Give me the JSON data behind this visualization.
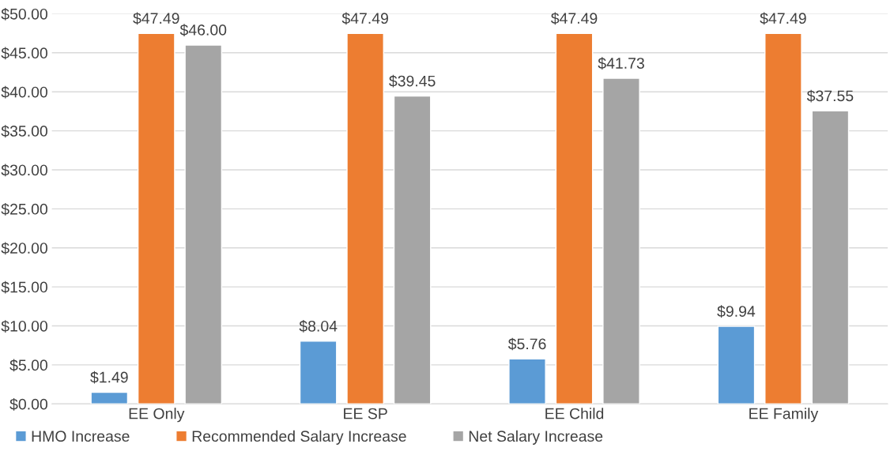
{
  "chart_data": {
    "type": "bar",
    "categories": [
      "EE Only",
      "EE SP",
      "EE Child",
      "EE Family"
    ],
    "series": [
      {
        "name": "HMO Increase",
        "color": "#5b9bd5",
        "values": [
          1.49,
          8.04,
          5.76,
          9.94
        ],
        "value_labels": [
          "$1.49",
          "$8.04",
          "$5.76",
          "$9.94"
        ]
      },
      {
        "name": "Recommended Salary Increase",
        "color": "#ed7d31",
        "values": [
          47.49,
          47.49,
          47.49,
          47.49
        ],
        "value_labels": [
          "$47.49",
          "$47.49",
          "$47.49",
          "$47.49"
        ]
      },
      {
        "name": "Net Salary Increase",
        "color": "#a5a5a5",
        "values": [
          46.0,
          39.45,
          41.73,
          37.55
        ],
        "value_labels": [
          "$46.00",
          "$39.45",
          "$41.73",
          "$37.55"
        ]
      }
    ],
    "ylim": [
      0,
      50
    ],
    "yticks": [
      {
        "value": 0,
        "label": "$0.00"
      },
      {
        "value": 5,
        "label": "$5.00"
      },
      {
        "value": 10,
        "label": "$10.00"
      },
      {
        "value": 15,
        "label": "$15.00"
      },
      {
        "value": 20,
        "label": "$20.00"
      },
      {
        "value": 25,
        "label": "$25.00"
      },
      {
        "value": 30,
        "label": "$30.00"
      },
      {
        "value": 35,
        "label": "$35.00"
      },
      {
        "value": 40,
        "label": "$40.00"
      },
      {
        "value": 45,
        "label": "$45.00"
      },
      {
        "value": 50,
        "label": "$50.00"
      }
    ],
    "grid": "y",
    "legend": "bottom left"
  }
}
